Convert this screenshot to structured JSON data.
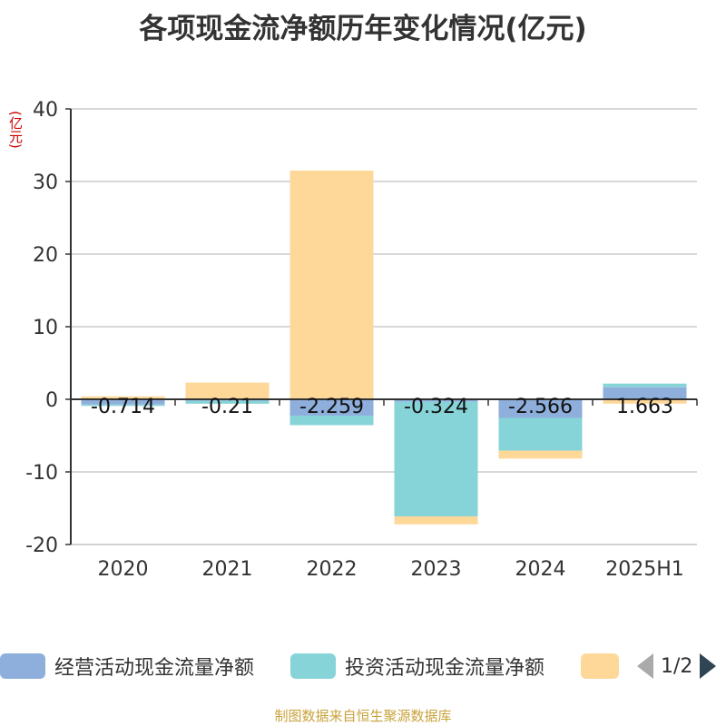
{
  "title": "各项现金流净额历年变化情况(亿元)",
  "unit_label": "(亿元)",
  "footer": "制图数据来自恒生聚源数据库",
  "legend": {
    "items": [
      {
        "label": "经营活动现金流量净额",
        "color": "#8eaedc"
      },
      {
        "label": "投资活动现金流量净额",
        "color": "#86d4d8"
      },
      {
        "label": "",
        "color": "#fdd899"
      }
    ],
    "page": "1/2"
  },
  "chart_data": {
    "type": "bar",
    "stacked": true,
    "categories": [
      "2020",
      "2021",
      "2022",
      "2023",
      "2024",
      "2025H1"
    ],
    "ylim": [
      -20,
      40
    ],
    "yticks": [
      -20,
      -10,
      0,
      10,
      20,
      30,
      40
    ],
    "grid": true,
    "series": [
      {
        "name": "经营活动现金流量净额",
        "color": "#8eaedc",
        "values": [
          -0.714,
          -0.21,
          -2.259,
          -0.324,
          -2.566,
          1.663
        ],
        "labels": [
          "-0.714",
          "-0.21",
          "-2.259",
          "-0.324",
          "-2.566",
          "1.663"
        ]
      },
      {
        "name": "投资活动现金流量净额",
        "color": "#86d4d8",
        "values": [
          -0.2,
          -0.4,
          -1.3,
          -15.8,
          -4.5,
          0.5
        ],
        "labels": []
      },
      {
        "name": "",
        "color": "#fdd899",
        "values": [
          0.4,
          2.3,
          31.5,
          -1.1,
          -1.1,
          -0.6
        ],
        "labels": []
      }
    ]
  }
}
